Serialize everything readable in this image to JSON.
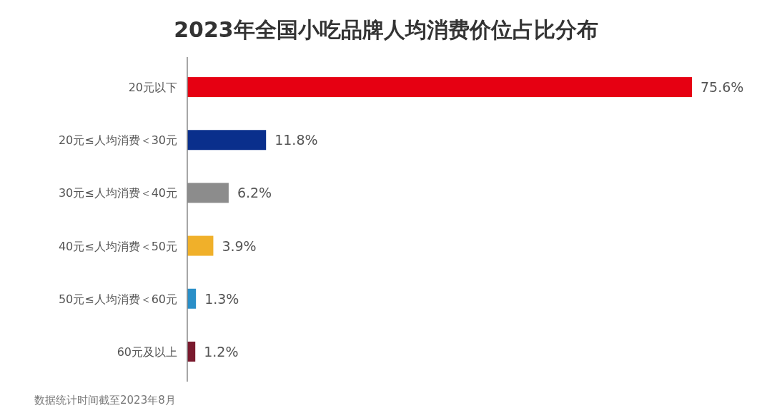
{
  "chart_data": {
    "type": "bar",
    "orientation": "horizontal",
    "title": "2023年全国小吃品牌人均消费价位占比分布",
    "categories": [
      "20元以下",
      "20元≤人均消费＜30元",
      "30元≤人均消费＜40元",
      "40元≤人均消费＜50元",
      "50元≤人均消费＜60元",
      "60元及以上"
    ],
    "values": [
      75.6,
      11.8,
      6.2,
      3.9,
      1.3,
      1.2
    ],
    "colors": [
      "#e60012",
      "#0a2f8c",
      "#8c8c8c",
      "#f0b02a",
      "#2a8fc8",
      "#7a1a2e"
    ],
    "value_labels": [
      "75.6%",
      "11.8%",
      "6.2%",
      "3.9%",
      "1.3%",
      "1.2%"
    ],
    "annotations": [
      "数据统计时间截至2023年8月"
    ]
  }
}
